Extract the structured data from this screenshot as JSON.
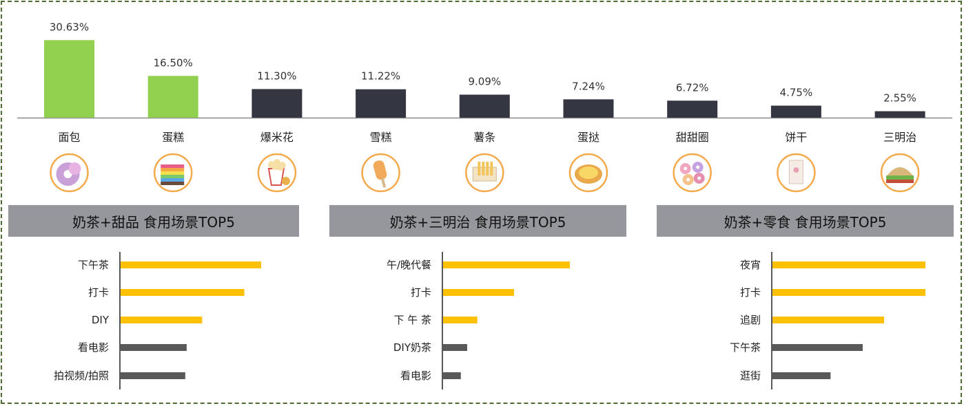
{
  "colors": {
    "highlight": "#92d050",
    "bar_dark": "#343741",
    "yellow": "#ffc000",
    "gray": "#595959",
    "panel": "#96979c",
    "ring": "#f4a94a"
  },
  "chart_data": [
    {
      "type": "bar",
      "categories": [
        "面包",
        "蛋糕",
        "爆米花",
        "雪糕",
        "薯条",
        "蛋挞",
        "甜甜圈",
        "饼干",
        "三明治"
      ],
      "values": [
        30.63,
        16.5,
        11.3,
        11.22,
        9.09,
        7.24,
        6.72,
        4.75,
        2.55
      ],
      "labels": [
        "30.63%",
        "16.50%",
        "11.30%",
        "11.22%",
        "9.09%",
        "7.24%",
        "6.72%",
        "4.75%",
        "2.55%"
      ],
      "highlight": [
        true,
        true,
        false,
        false,
        false,
        false,
        false,
        false,
        false
      ],
      "icons": [
        "donut-icon",
        "rainbow-cake-icon",
        "popcorn-icon",
        "ice-cream-icon",
        "fries-icon",
        "egg-tart-icon",
        "doughnuts-icon",
        "biscuit-icon",
        "sandwich-icon"
      ],
      "ylim": [
        0,
        32
      ]
    },
    {
      "type": "bar",
      "orientation": "horizontal",
      "title": "奶茶+甜品 食用场景TOP5",
      "categories": [
        "下午茶",
        "打卡",
        "DIY",
        "看电影",
        "拍视频/拍照"
      ],
      "values": [
        100,
        88,
        58,
        47,
        46
      ],
      "colors": [
        "yellow",
        "yellow",
        "yellow",
        "gray",
        "gray"
      ],
      "xlim": [
        0,
        100
      ]
    },
    {
      "type": "bar",
      "orientation": "horizontal",
      "title": "奶茶+三明治 食用场景TOP5",
      "categories": [
        "午/晚代餐",
        "打卡",
        "下 午 茶",
        "DIY奶茶",
        "看电影"
      ],
      "values": [
        100,
        56,
        27,
        19,
        14
      ],
      "colors": [
        "yellow",
        "yellow",
        "yellow",
        "gray",
        "gray"
      ],
      "xlim": [
        0,
        100
      ]
    },
    {
      "type": "bar",
      "orientation": "horizontal",
      "title": "奶茶+零食 食用场景TOP5",
      "categories": [
        "夜宵",
        "打卡",
        "追剧",
        "下午茶",
        "逛街"
      ],
      "values": [
        100,
        100,
        73,
        59,
        38
      ],
      "colors": [
        "yellow",
        "yellow",
        "yellow",
        "gray",
        "gray"
      ],
      "xlim": [
        0,
        100
      ]
    }
  ]
}
